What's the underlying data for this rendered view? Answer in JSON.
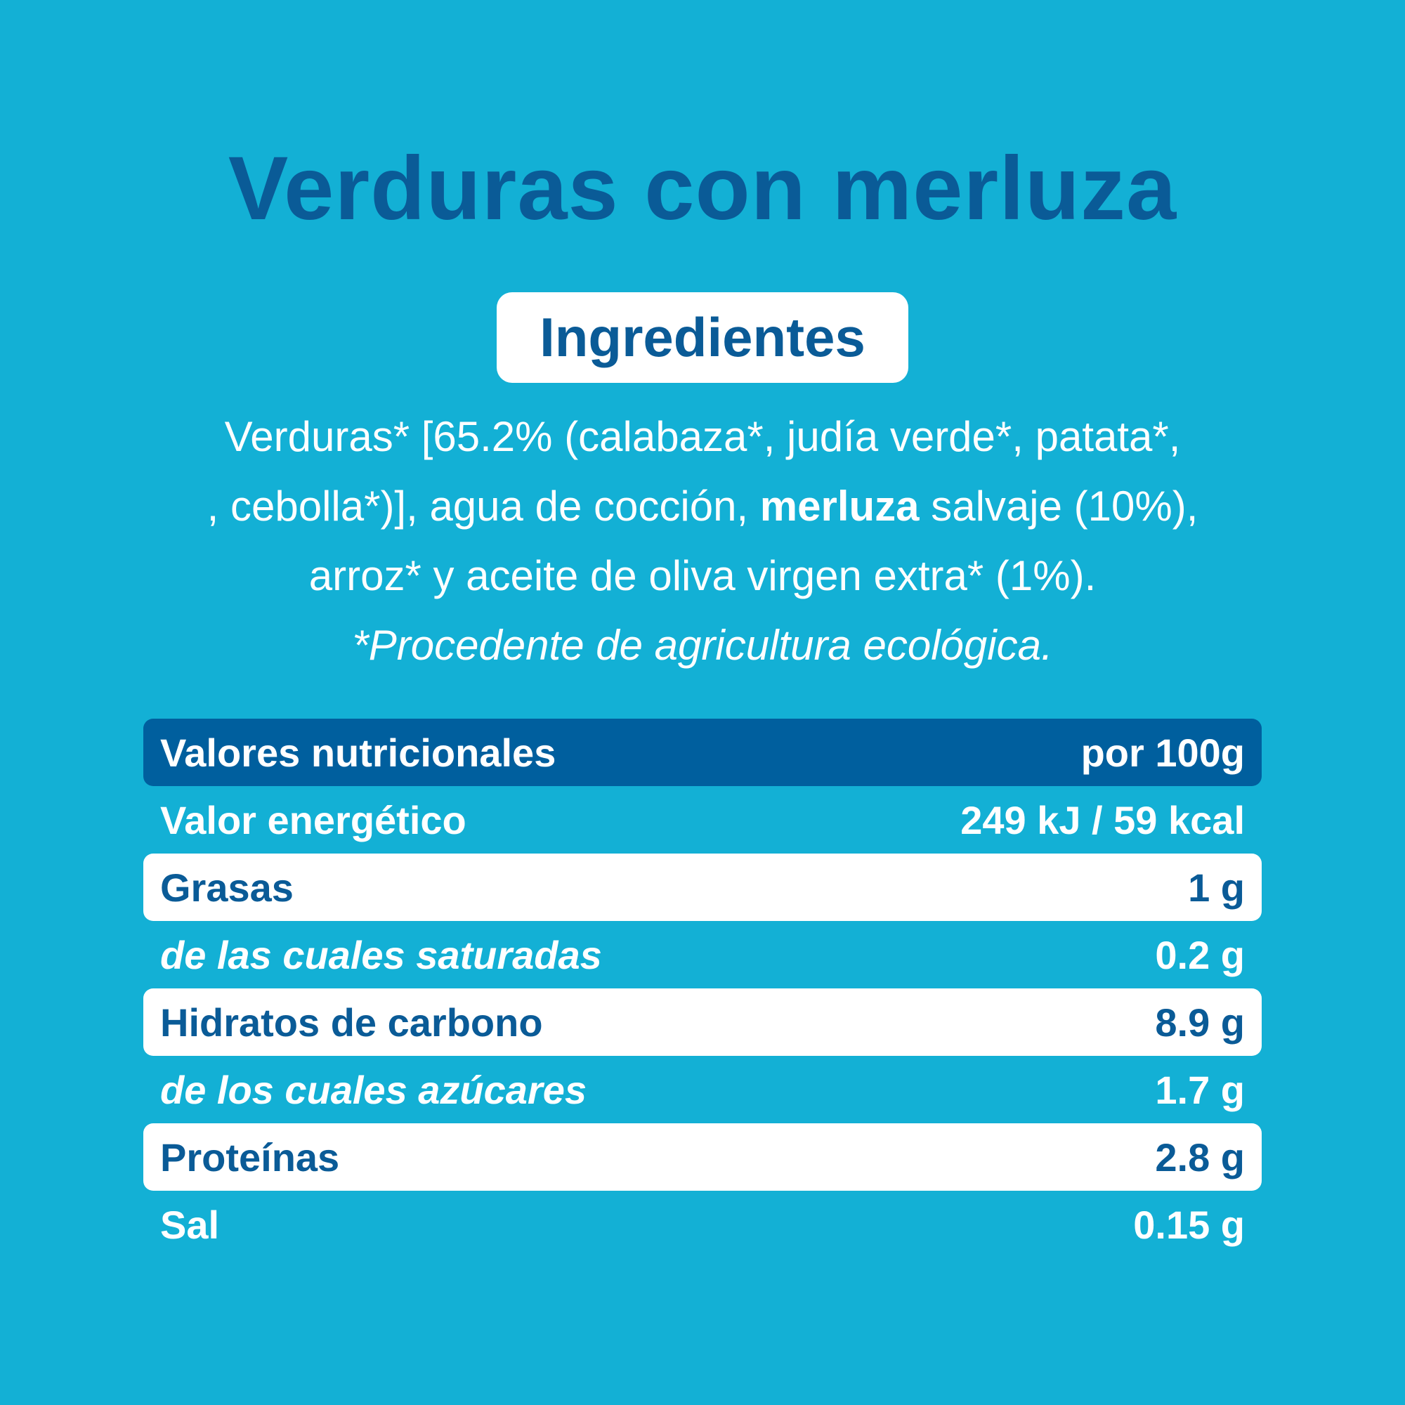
{
  "title": "Verduras con merluza",
  "ingredients": {
    "heading": "Ingredientes",
    "lines": [
      [
        "Verduras* [65.2% (calabaza*, judía verde*, patata*,"
      ],
      [
        ", cebolla*)], agua de cocción, ",
        "merluza",
        " salvaje (10%),"
      ],
      [
        "arroz* y aceite de oliva virgen extra* (1%)."
      ]
    ],
    "bold": {
      "line": 1,
      "segment": 1
    },
    "note": "*Procedente de agricultura ecológica."
  },
  "table": {
    "header": [
      "Valores nutricionales",
      "por 100g"
    ],
    "rows": [
      [
        "Valor energético",
        "249 kJ / 59 kcal"
      ],
      [
        "Grasas",
        "1 g"
      ],
      [
        "de las cuales saturadas",
        "0.2 g"
      ],
      [
        "Hidratos de carbono",
        "8.9 g"
      ],
      [
        "de los cuales azúcares",
        "1.7 g"
      ],
      [
        "Proteínas",
        "2.8 g"
      ],
      [
        "Sal",
        "0.15 g"
      ]
    ]
  }
}
